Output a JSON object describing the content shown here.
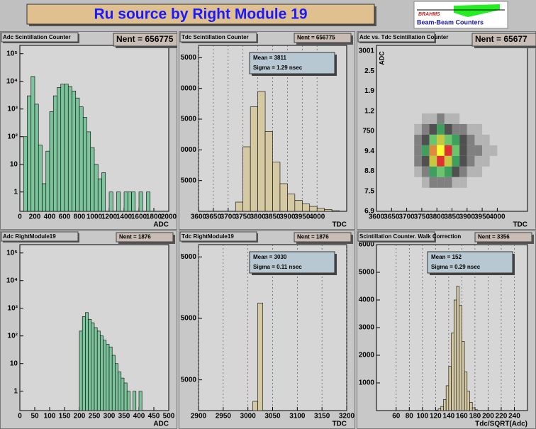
{
  "header": {
    "title": "Ru source by Right Module 19",
    "logo_name": "BRAHMS",
    "logo_text": "Beam-Beam Counters"
  },
  "chart_data": [
    {
      "type": "histogram",
      "title": "Adc Scintillation Counter",
      "stats": {
        "nent": "Nent = 656775"
      },
      "x_label": "ADC",
      "color": "#7cc49c",
      "log_y": true,
      "xgrid": false,
      "bins": [
        0,
        50,
        100,
        150,
        200,
        250,
        300,
        350,
        400,
        450,
        500,
        550,
        600,
        650,
        700,
        750,
        800,
        850,
        900,
        950,
        1000,
        1050,
        1100,
        1150,
        1200,
        1250,
        1300,
        1350,
        1400,
        1450,
        1500,
        1550,
        1600,
        1650,
        1700,
        1750,
        1800,
        1850,
        1900,
        1950,
        2000
      ],
      "counts": [
        0,
        100,
        3000,
        15000,
        1500,
        50,
        2,
        30,
        800,
        3000,
        6000,
        8000,
        8000,
        6500,
        4500,
        2500,
        1200,
        500,
        150,
        40,
        10,
        3,
        5,
        0,
        1,
        0,
        1,
        0,
        1,
        1,
        1,
        0,
        1,
        0,
        1,
        0,
        0,
        0,
        0,
        0
      ],
      "xlim": [
        0,
        2000
      ],
      "xticks": [
        0,
        200,
        400,
        600,
        800,
        1000,
        1200,
        1400,
        1600,
        1800,
        2000
      ],
      "ylim": [
        0.2,
        200000
      ],
      "yticks": [
        1,
        10,
        {
          "value": 100,
          "label": "10²"
        },
        {
          "value": 1000,
          "label": "10³"
        },
        {
          "value": 10000,
          "label": "10⁴"
        },
        {
          "value": 100000,
          "label": "10⁵"
        }
      ]
    },
    {
      "type": "histogram",
      "title": "Tdc Scintillation Counter",
      "stats": {
        "nent": "Nent = 656775",
        "mean": "Mean = 3811",
        "sigma": "Sigma = 1.29 nsec"
      },
      "x_label": "TDC",
      "color": "#d4c9a3",
      "log_y": false,
      "xgrid": true,
      "bins": [
        3600,
        3625,
        3650,
        3675,
        3700,
        3725,
        3750,
        3775,
        3800,
        3825,
        3850,
        3875,
        3900,
        3925,
        3950,
        3975,
        4000,
        4025,
        4050,
        4075,
        4100
      ],
      "counts": [
        0,
        0,
        0,
        0,
        0,
        1500,
        10500,
        17000,
        19500,
        13000,
        8000,
        4500,
        2800,
        1800,
        1200,
        800,
        500,
        300,
        100,
        0
      ],
      "xlim": [
        3600,
        4100
      ],
      "xticks": [
        3600,
        3650,
        3700,
        3750,
        3800,
        3850,
        3900,
        3950,
        4000
      ],
      "ylim": [
        0,
        27000
      ],
      "yticks": [
        5000,
        {
          "value": 10000,
          "label": "0000"
        },
        {
          "value": 15000,
          "label": "5000"
        },
        {
          "value": 20000,
          "label": "0000"
        },
        {
          "value": 25000,
          "label": "5000"
        }
      ]
    },
    {
      "type": "heatmap",
      "title": "Adc vs. Tdc Scintillation Counter",
      "stats": {
        "nent": "Nent = 65677"
      },
      "x_label": "TDC",
      "y_label": "ADC",
      "xlim": [
        3600,
        4100
      ],
      "xticks": [
        3600,
        3650,
        3700,
        3750,
        3800,
        3850,
        3900,
        3950,
        4000
      ],
      "ylabels": [
        "3001",
        "2.5",
        "1.9",
        "1.2",
        "750",
        "9.4",
        "8.8",
        "7.5",
        "6.9"
      ],
      "xbins": [
        3725,
        3750,
        3775,
        3800,
        3825,
        3850,
        3875,
        3900,
        3925,
        3950,
        3975,
        4000
      ],
      "palette": [
        "none",
        "#b4b4b4",
        "#808080",
        "#505050",
        "#3f9f5f",
        "#6cc46c",
        "#c8c840",
        "#e08a40",
        "#e03030",
        "#ffff30"
      ],
      "z": [
        [
          0,
          1,
          1,
          2,
          1,
          1,
          0,
          0,
          0,
          0,
          0
        ],
        [
          1,
          2,
          3,
          4,
          3,
          2,
          2,
          1,
          1,
          0,
          0
        ],
        [
          2,
          3,
          5,
          6,
          5,
          4,
          3,
          2,
          1,
          1,
          0
        ],
        [
          2,
          4,
          7,
          9,
          8,
          5,
          3,
          2,
          2,
          1,
          1
        ],
        [
          2,
          3,
          6,
          8,
          6,
          4,
          3,
          2,
          1,
          1,
          0
        ],
        [
          1,
          2,
          4,
          5,
          4,
          3,
          2,
          1,
          1,
          0,
          0
        ],
        [
          0,
          1,
          2,
          2,
          2,
          1,
          1,
          0,
          0,
          0,
          0
        ]
      ]
    },
    {
      "type": "histogram",
      "title": "Adc RightModule19",
      "stats": {
        "nent": "Nent = 1876"
      },
      "x_label": "ADC",
      "color": "#7cc49c",
      "log_y": true,
      "xgrid": false,
      "bins": [
        0,
        10,
        20,
        30,
        40,
        50,
        60,
        70,
        80,
        90,
        100,
        110,
        120,
        130,
        140,
        150,
        160,
        170,
        180,
        190,
        200,
        210,
        220,
        230,
        240,
        250,
        260,
        270,
        280,
        290,
        300,
        310,
        320,
        330,
        340,
        350,
        360,
        370,
        380,
        390,
        400,
        410,
        420,
        430,
        440,
        450,
        460,
        470,
        480,
        490,
        500
      ],
      "counts": [
        0,
        0,
        0,
        0,
        0,
        0,
        0,
        0,
        0,
        0,
        0,
        0,
        0,
        0,
        0,
        0,
        0,
        0,
        0,
        0,
        150,
        500,
        700,
        400,
        300,
        200,
        150,
        100,
        70,
        50,
        40,
        20,
        10,
        5,
        3,
        2,
        1,
        0,
        1,
        0,
        1,
        0,
        0,
        0,
        0,
        0,
        0,
        0,
        0,
        0
      ],
      "xlim": [
        0,
        500
      ],
      "xticks": [
        0,
        50,
        100,
        150,
        200,
        250,
        300,
        350,
        400,
        450,
        500
      ],
      "ylim": [
        0.2,
        200000
      ],
      "yticks": [
        1,
        10,
        {
          "value": 100,
          "label": "10²"
        },
        {
          "value": 1000,
          "label": "10³"
        },
        {
          "value": 10000,
          "label": "10⁴"
        },
        {
          "value": 100000,
          "label": "10⁵"
        }
      ]
    },
    {
      "type": "histogram",
      "title": "Tdc RightModule19",
      "stats": {
        "nent": "Nent = 1876",
        "mean": "Mean = 3030",
        "sigma": "Sigma = 0.11 nsec"
      },
      "x_label": "TDC",
      "color": "#d4c9a3",
      "log_y": false,
      "xgrid": true,
      "bins": [
        2900,
        2910,
        2920,
        2930,
        2940,
        2950,
        2960,
        2970,
        2980,
        2990,
        3000,
        3010,
        3020,
        3030,
        3040,
        3050,
        3060,
        3070,
        3080,
        3090,
        3100,
        3110,
        3120,
        3130,
        3140,
        3150,
        3160,
        3170,
        3180,
        3190,
        3200
      ],
      "counts": [
        0,
        0,
        0,
        0,
        0,
        0,
        0,
        0,
        0,
        0,
        0,
        1500,
        17500,
        0,
        0,
        0,
        0,
        0,
        0,
        0,
        0,
        0,
        0,
        0,
        0,
        0,
        0,
        0,
        0,
        0
      ],
      "xlim": [
        2900,
        3200
      ],
      "xticks": [
        2900,
        2950,
        3000,
        3050,
        3100,
        3150,
        3200
      ],
      "ylim": [
        0,
        27000
      ],
      "yticks": [
        5000,
        {
          "value": 15000,
          "label": "5000"
        },
        {
          "value": 25000,
          "label": "5000"
        }
      ]
    },
    {
      "type": "histogram",
      "title": "Scintillation Counter. Walk Correction",
      "stats": {
        "nent": "Nent = 3356",
        "mean": "Mean = 152",
        "sigma": "Sigma = 0.29 nsec"
      },
      "x_label": "Tdc/SQRT(Adc)",
      "color": "#d4c9a3",
      "log_y": false,
      "xgrid": true,
      "bins": [
        120,
        124,
        128,
        132,
        136,
        140,
        144,
        148,
        152,
        156,
        160,
        164,
        168,
        172,
        176,
        180,
        184
      ],
      "counts": [
        20,
        60,
        150,
        400,
        900,
        1600,
        2800,
        4000,
        4500,
        3800,
        2500,
        1400,
        700,
        300,
        100,
        30
      ],
      "xlim": [
        30,
        260
      ],
      "xticks": [
        60,
        80,
        100,
        120,
        140,
        160,
        180,
        200,
        220,
        240
      ],
      "ylim": [
        0,
        6000
      ],
      "yticks": [
        1000,
        2000,
        3000,
        4000,
        5000,
        6000
      ]
    }
  ]
}
